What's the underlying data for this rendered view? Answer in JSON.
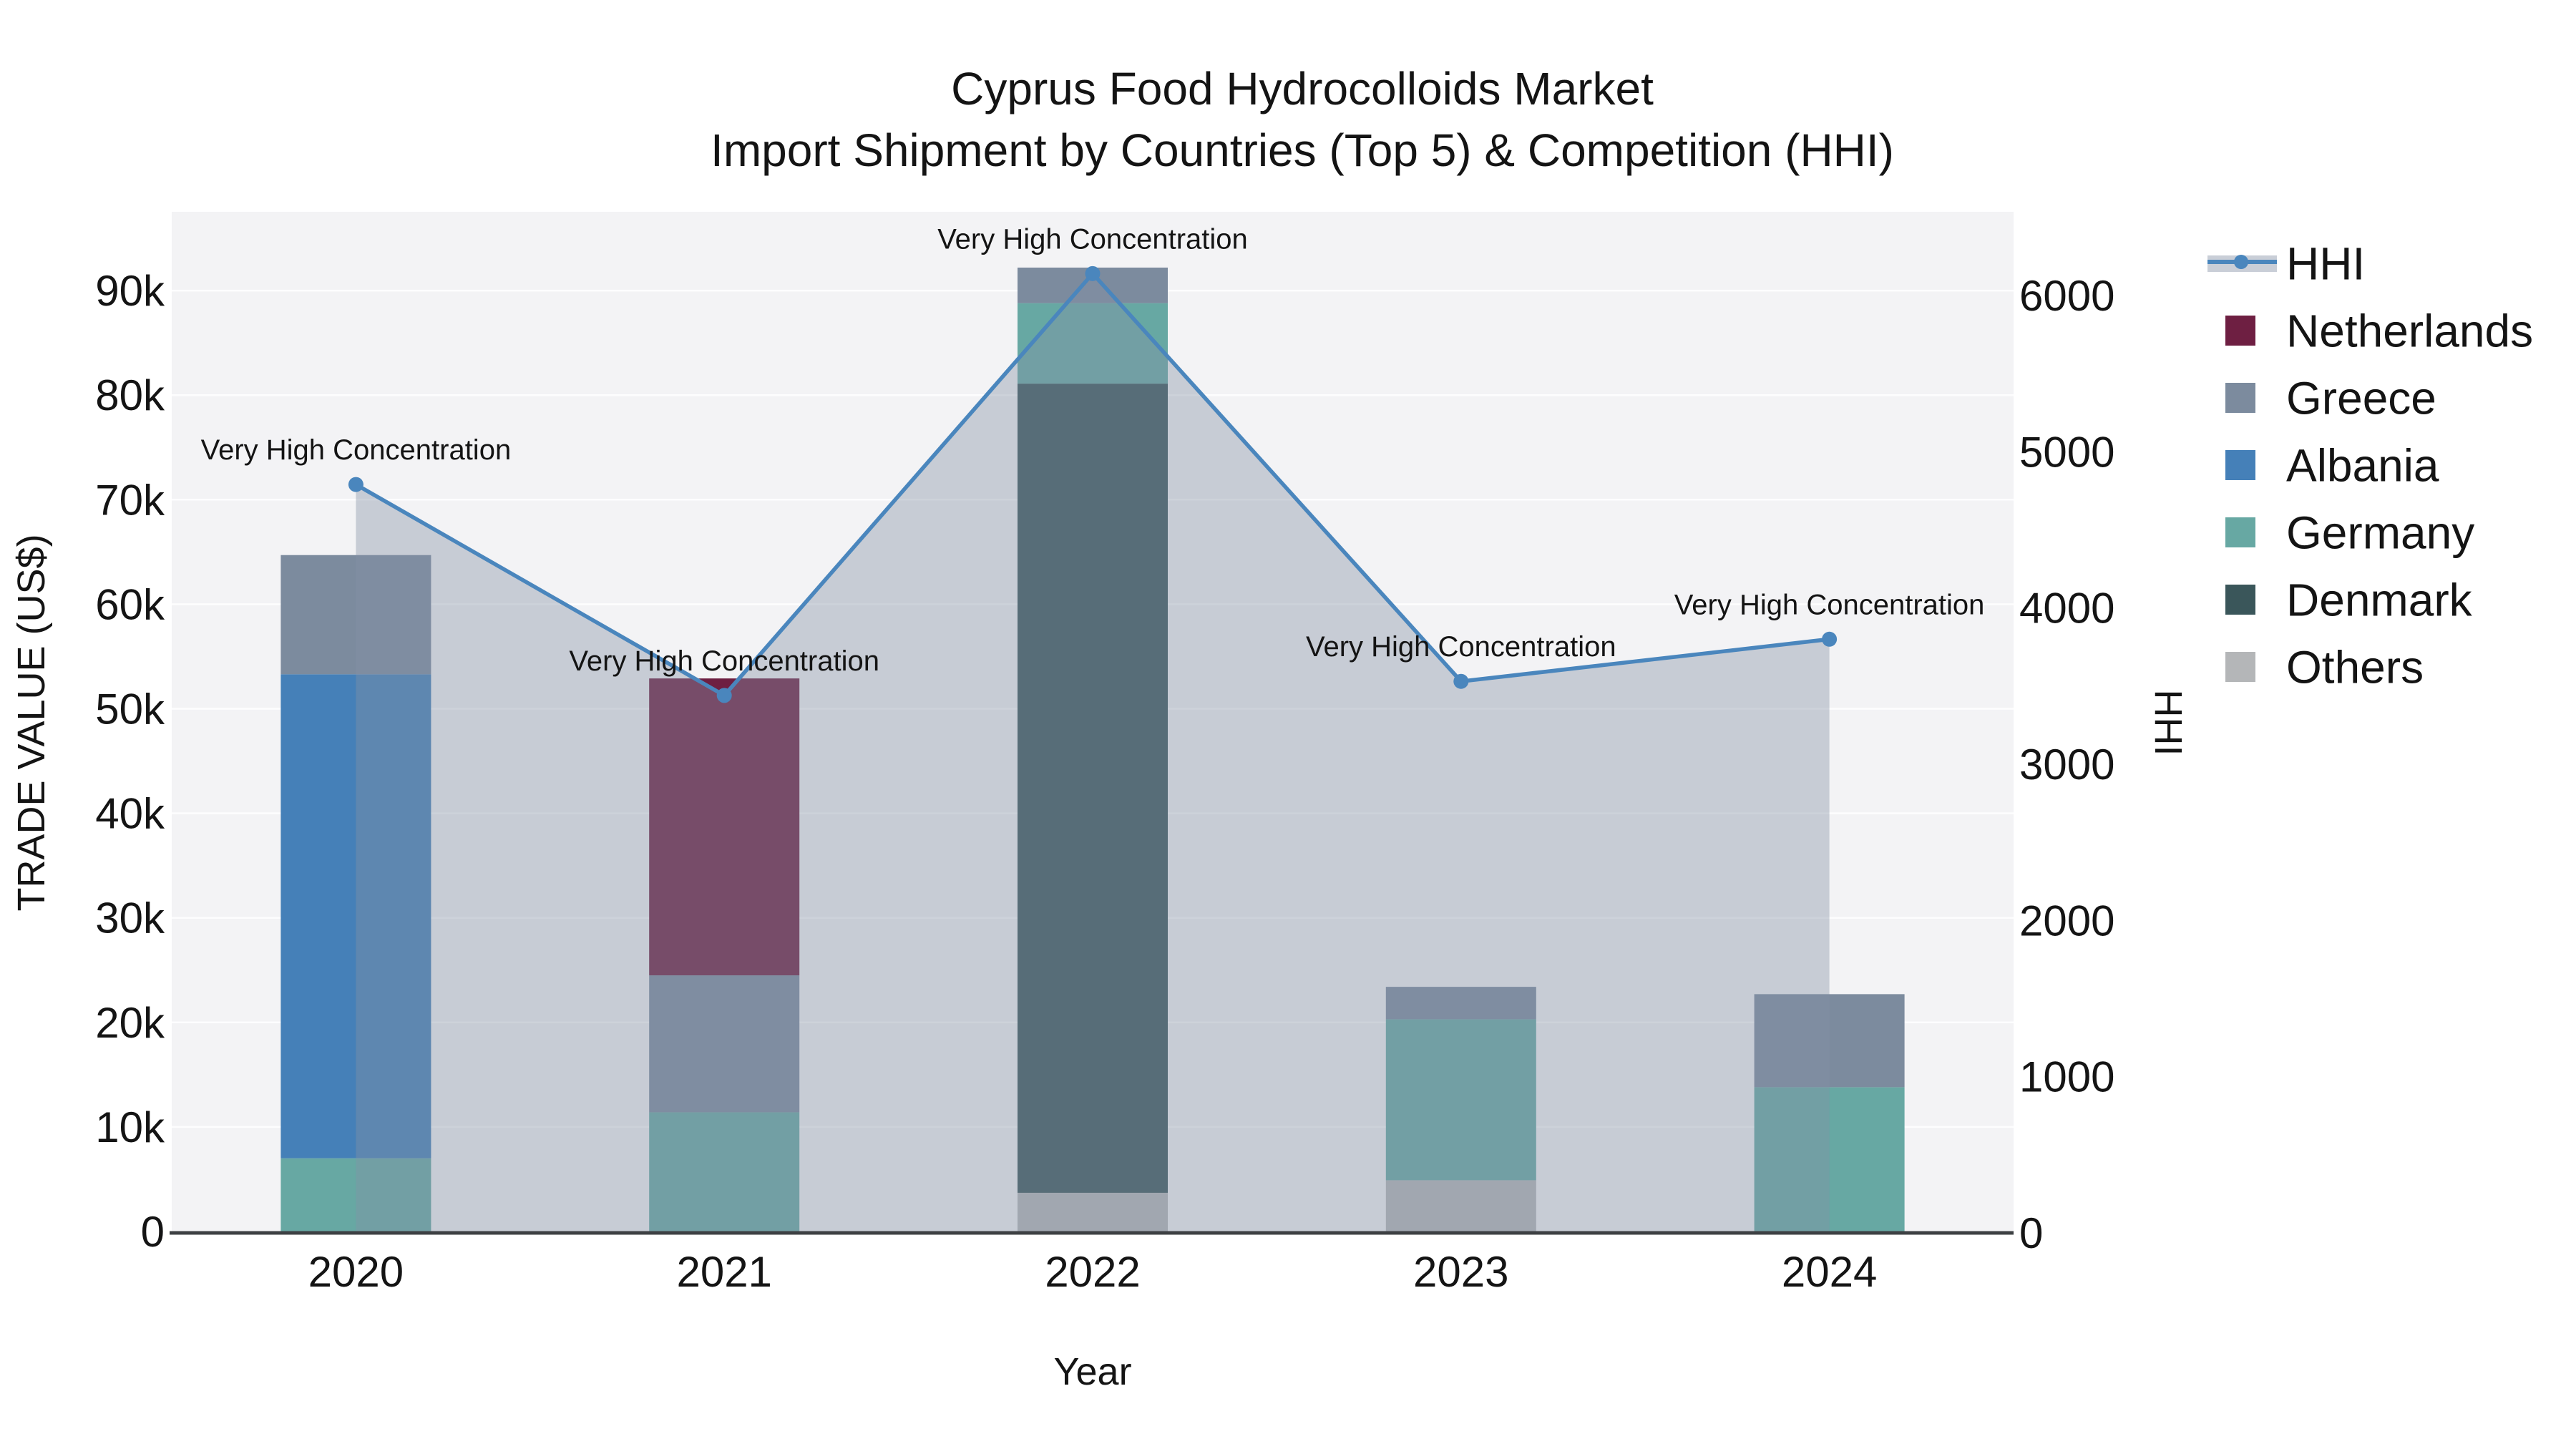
{
  "title": {
    "line1": "Cyprus Food Hydrocolloids Market",
    "line2": "Import Shipment by Countries (Top 5) & Competition (HHI)"
  },
  "axes": {
    "left": {
      "title": "TRADE VALUE (US$)",
      "ticks": [
        "0",
        "10k",
        "20k",
        "30k",
        "40k",
        "50k",
        "60k",
        "70k",
        "80k",
        "90k"
      ]
    },
    "right": {
      "title": "HHI",
      "ticks": [
        "0",
        "1000",
        "2000",
        "3000",
        "4000",
        "5000",
        "6000"
      ]
    },
    "x": {
      "title": "Year",
      "ticks": [
        "2020",
        "2021",
        "2022",
        "2023",
        "2024"
      ]
    }
  },
  "legend": {
    "items": [
      {
        "label": "HHI",
        "type": "line",
        "color": "#4a86bd",
        "band": "#c9ced7"
      },
      {
        "label": "Netherlands",
        "type": "swatch",
        "color": "#6e1f42"
      },
      {
        "label": "Greece",
        "type": "swatch",
        "color": "#7c8b9e"
      },
      {
        "label": "Albania",
        "type": "swatch",
        "color": "#4580b8"
      },
      {
        "label": "Germany",
        "type": "swatch",
        "color": "#67a8a3"
      },
      {
        "label": "Denmark",
        "type": "swatch",
        "color": "#3a565a"
      },
      {
        "label": "Others",
        "type": "swatch",
        "color": "#b4b6b8"
      }
    ]
  },
  "chart_data": {
    "type": "combo",
    "bar_type": "stacked",
    "title": "Cyprus Food Hydrocolloids Market — Import Shipment by Countries (Top 5) & Competition (HHI)",
    "xlabel": "Year",
    "ylabel": "TRADE VALUE (US$)",
    "y2label": "HHI",
    "categories": [
      "2020",
      "2021",
      "2022",
      "2023",
      "2024"
    ],
    "bar_unit": "US$",
    "series": [
      {
        "name": "Others",
        "color": "#b4b6b8",
        "values": [
          0,
          0,
          3700,
          4900,
          0
        ]
      },
      {
        "name": "Denmark",
        "color": "#3a565a",
        "values": [
          0,
          0,
          77400,
          0,
          0
        ]
      },
      {
        "name": "Germany",
        "color": "#67a8a3",
        "values": [
          7000,
          11400,
          7700,
          15400,
          13800
        ]
      },
      {
        "name": "Albania",
        "color": "#4580b8",
        "values": [
          46300,
          0,
          0,
          0,
          0
        ]
      },
      {
        "name": "Greece",
        "color": "#7c8b9e",
        "values": [
          11400,
          13100,
          3400,
          3100,
          8900
        ]
      },
      {
        "name": "Netherlands",
        "color": "#6e1f42",
        "values": [
          0,
          28400,
          0,
          0,
          0
        ]
      }
    ],
    "bar_totals": [
      64700,
      52900,
      92200,
      23400,
      22700
    ],
    "line_series": {
      "name": "HHI",
      "axis": "right",
      "color": "#4a86bd",
      "fill": "rgba(133,146,166,0.4)",
      "values": [
        4790,
        3440,
        6140,
        3530,
        3800
      ]
    },
    "annotations": [
      {
        "year": "2020",
        "text": "Very High Concentration"
      },
      {
        "year": "2021",
        "text": "Very High Concentration"
      },
      {
        "year": "2022",
        "text": "Very High Concentration"
      },
      {
        "year": "2023",
        "text": "Very High Concentration"
      },
      {
        "year": "2024",
        "text": "Very High Concentration"
      }
    ],
    "ylim": [
      0,
      97500
    ],
    "y2lim": [
      0,
      6530
    ],
    "grid": true,
    "legend_position": "right"
  },
  "colors": {
    "plot_background": "#f3f3f5",
    "gridline": "#ffffff",
    "axis_line": "#3d4043",
    "text": "#141414"
  }
}
